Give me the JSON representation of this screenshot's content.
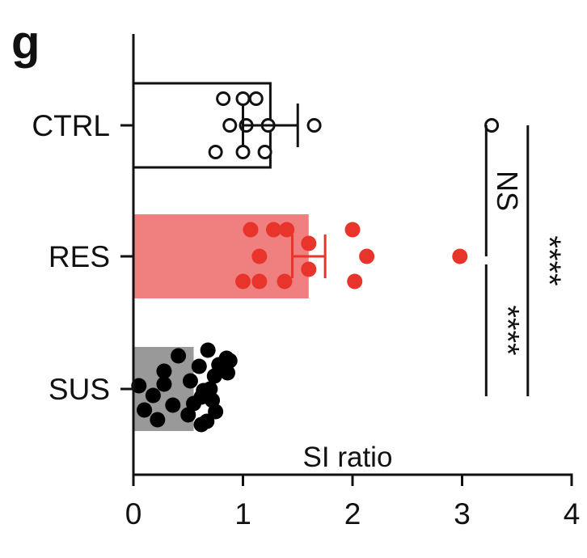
{
  "panel_label": "g",
  "chart_data": {
    "type": "bar",
    "orientation": "horizontal",
    "title": "",
    "xlabel": "SI ratio",
    "ylabel": "",
    "xlim": [
      0,
      4
    ],
    "xticks": [
      0,
      1,
      2,
      3,
      4
    ],
    "grid": false,
    "categories": [
      "CTRL",
      "RES",
      "SUS"
    ],
    "series": [
      {
        "category": "CTRL",
        "mean": 1.25,
        "error": 0.25,
        "bar_color": "#ffffff",
        "bar_stroke": "#111111",
        "point_style": "open",
        "point_color": "#111111",
        "points": [
          0.82,
          1.0,
          1.12,
          0.88,
          1.03,
          1.65,
          1.23,
          0.75,
          1.0,
          1.2
        ]
      },
      {
        "category": "RES",
        "mean": 1.6,
        "error": 0.15,
        "bar_color": "#f08080",
        "bar_stroke": "none",
        "point_style": "filled",
        "point_color": "#e8342a",
        "points": [
          1.07,
          1.28,
          1.4,
          2.0,
          1.15,
          1.6,
          2.13,
          2.98,
          1.0,
          1.15,
          1.38,
          1.6,
          2.02
        ]
      },
      {
        "category": "SUS",
        "mean": 0.55,
        "error": 0,
        "bar_color": "#999999",
        "bar_stroke": "none",
        "point_style": "filled",
        "point_color": "#000000",
        "points": [
          0.68,
          0.88,
          0.28,
          0.52,
          0.64,
          0.72,
          0.1,
          0.22,
          0.41,
          0.6,
          0.74,
          0.05,
          0.18,
          0.36,
          0.5,
          0.62,
          0.78,
          0.28,
          0.55,
          0.67,
          0.86,
          0.62,
          0.75,
          0.85,
          0.7
        ]
      }
    ],
    "outliers": [
      {
        "category": "CTRL",
        "value": 3.27,
        "point_style": "open",
        "point_color": "#111111"
      }
    ],
    "significance": [
      {
        "label": "NS",
        "from": "CTRL",
        "to": "RES",
        "x": 3.22
      },
      {
        "label": "****",
        "from": "RES",
        "to": "SUS",
        "x": 3.22
      },
      {
        "label": "****",
        "from": "CTRL",
        "to": "SUS",
        "x": 3.6
      }
    ]
  }
}
